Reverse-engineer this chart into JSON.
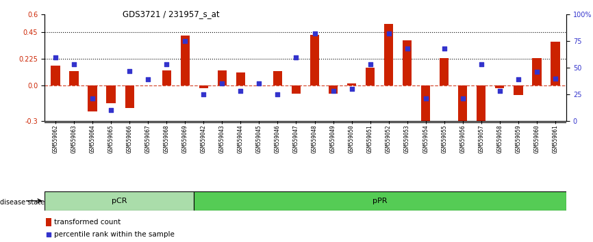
{
  "title": "GDS3721 / 231957_s_at",
  "samples": [
    "GSM559062",
    "GSM559063",
    "GSM559064",
    "GSM559065",
    "GSM559066",
    "GSM559067",
    "GSM559068",
    "GSM559069",
    "GSM559042",
    "GSM559043",
    "GSM559044",
    "GSM559045",
    "GSM559046",
    "GSM559047",
    "GSM559048",
    "GSM559049",
    "GSM559050",
    "GSM559051",
    "GSM559052",
    "GSM559053",
    "GSM559054",
    "GSM559055",
    "GSM559056",
    "GSM559057",
    "GSM559058",
    "GSM559059",
    "GSM559060",
    "GSM559061"
  ],
  "transformed_count": [
    0.17,
    0.12,
    -0.22,
    -0.15,
    -0.19,
    0.0,
    0.13,
    0.42,
    -0.02,
    0.13,
    0.11,
    0.0,
    0.12,
    -0.07,
    0.43,
    -0.07,
    0.02,
    0.15,
    0.52,
    0.38,
    -0.32,
    0.23,
    -0.38,
    -0.3,
    -0.02,
    -0.08,
    0.23,
    0.37
  ],
  "percentile_rank": [
    60,
    53,
    21,
    10,
    47,
    39,
    53,
    75,
    25,
    35,
    28,
    35,
    25,
    60,
    82,
    28,
    30,
    53,
    82,
    68,
    21,
    68,
    21,
    53,
    28,
    39,
    46,
    40
  ],
  "pCR_count": 8,
  "pPR_count": 20,
  "bar_color": "#cc2200",
  "dot_color": "#3333cc",
  "background_color": "#ffffff",
  "pCR_color": "#aaddaa",
  "pPR_color": "#55cc55",
  "ylim_left": [
    -0.3,
    0.6
  ],
  "ylim_right": [
    0,
    100
  ],
  "yticks_left": [
    -0.3,
    0.0,
    0.225,
    0.45,
    0.6
  ],
  "yticks_right": [
    0,
    25,
    50,
    75,
    100
  ],
  "hline_y": [
    0.225,
    0.45
  ],
  "disease_state_label": "disease state"
}
